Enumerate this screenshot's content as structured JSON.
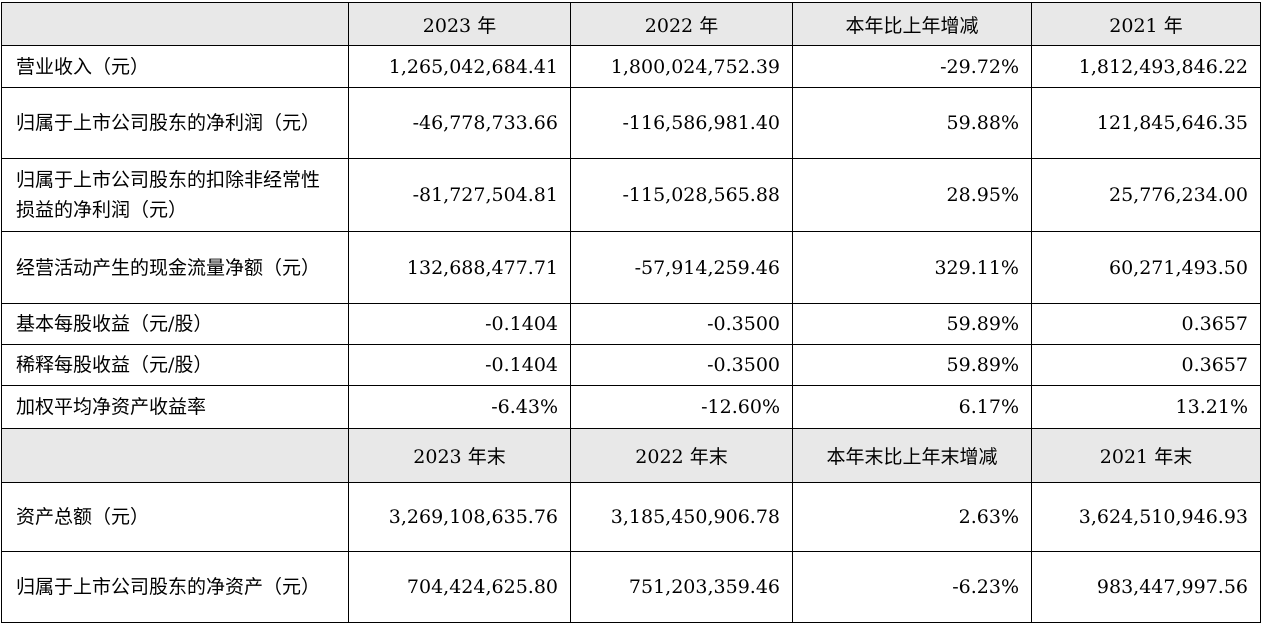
{
  "header1": [
    "",
    "2023 年",
    "2022 年",
    "本年比上年增减",
    "2021 年"
  ],
  "header2": [
    "",
    "2023 年末",
    "2022 年末",
    "本年末比上年末增减",
    "2021 年末"
  ],
  "rows": [
    {
      "label": "营业收入（元）",
      "v2023": "1,265,042,684.41",
      "v2022": "1,800,024,752.39",
      "change": "-29.72%",
      "v2021": "1,812,493,846.22"
    },
    {
      "label": "归属于上市公司股东的净利润（元）",
      "v2023": "-46,778,733.66",
      "v2022": "-116,586,981.40",
      "change": "59.88%",
      "v2021": "121,845,646.35"
    },
    {
      "label": "归属于上市公司股东的扣除非经常性损益的净利润（元）",
      "v2023": "-81,727,504.81",
      "v2022": "-115,028,565.88",
      "change": "28.95%",
      "v2021": "25,776,234.00"
    },
    {
      "label": "经营活动产生的现金流量净额（元）",
      "v2023": "132,688,477.71",
      "v2022": "-57,914,259.46",
      "change": "329.11%",
      "v2021": "60,271,493.50"
    },
    {
      "label": "基本每股收益（元/股）",
      "v2023": "-0.1404",
      "v2022": "-0.3500",
      "change": "59.89%",
      "v2021": "0.3657"
    },
    {
      "label": "稀释每股收益（元/股）",
      "v2023": "-0.1404",
      "v2022": "-0.3500",
      "change": "59.89%",
      "v2021": "0.3657"
    },
    {
      "label": "加权平均净资产收益率",
      "v2023": "-6.43%",
      "v2022": "-12.60%",
      "change": "6.17%",
      "v2021": "13.21%"
    },
    {
      "label": "资产总额（元）",
      "v2023": "3,269,108,635.76",
      "v2022": "3,185,450,906.78",
      "change": "2.63%",
      "v2021": "3,624,510,946.93"
    },
    {
      "label": "归属于上市公司股东的净资产（元）",
      "v2023": "704,424,625.80",
      "v2022": "751,203,359.46",
      "change": "-6.23%",
      "v2021": "983,447,997.56"
    }
  ]
}
